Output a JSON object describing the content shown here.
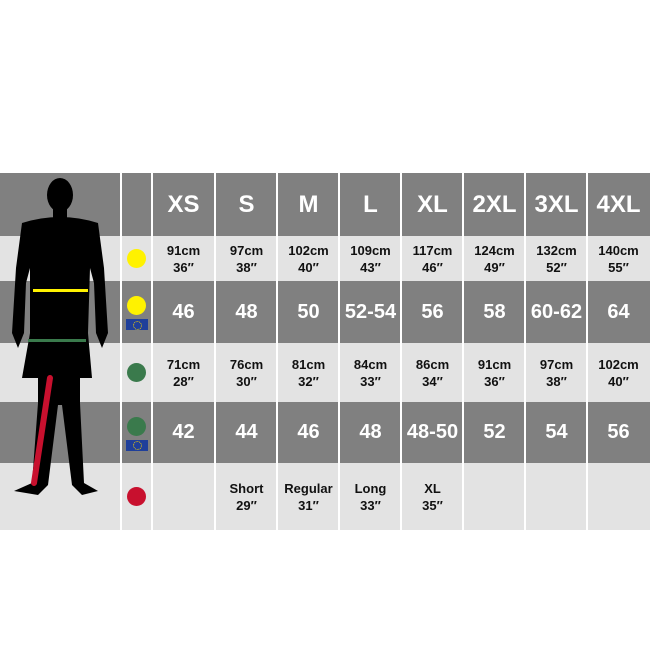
{
  "sizes": [
    "XS",
    "S",
    "M",
    "L",
    "XL",
    "2XL",
    "3XL",
    "4XL"
  ],
  "rows": [
    {
      "name": "chest-cm-in",
      "indicator": "yellow",
      "eu": false,
      "values": [
        [
          "91cm",
          "36″"
        ],
        [
          "97cm",
          "38″"
        ],
        [
          "102cm",
          "40″"
        ],
        [
          "109cm",
          "43″"
        ],
        [
          "117cm",
          "46″"
        ],
        [
          "124cm",
          "49″"
        ],
        [
          "132cm",
          "52″"
        ],
        [
          "140cm",
          "55″"
        ]
      ]
    },
    {
      "name": "chest-eu",
      "indicator": "yellow",
      "eu": true,
      "values": [
        [
          "46"
        ],
        [
          "48"
        ],
        [
          "50"
        ],
        [
          "52-54"
        ],
        [
          "56"
        ],
        [
          "58"
        ],
        [
          "60-62"
        ],
        [
          "64"
        ]
      ]
    },
    {
      "name": "waist-cm-in",
      "indicator": "green",
      "eu": false,
      "values": [
        [
          "71cm",
          "28″"
        ],
        [
          "76cm",
          "30″"
        ],
        [
          "81cm",
          "32″"
        ],
        [
          "84cm",
          "33″"
        ],
        [
          "86cm",
          "34″"
        ],
        [
          "91cm",
          "36″"
        ],
        [
          "97cm",
          "38″"
        ],
        [
          "102cm",
          "40″"
        ]
      ]
    },
    {
      "name": "waist-eu",
      "indicator": "green",
      "eu": true,
      "values": [
        [
          "42"
        ],
        [
          "44"
        ],
        [
          "46"
        ],
        [
          "48"
        ],
        [
          "48-50"
        ],
        [
          "52"
        ],
        [
          "54"
        ],
        [
          "56"
        ]
      ]
    },
    {
      "name": "inside-leg",
      "indicator": "red",
      "eu": false,
      "values": [
        [],
        [
          "Short",
          "29″"
        ],
        [
          "Regular",
          "31″"
        ],
        [
          "Long",
          "33″"
        ],
        [
          "XL",
          "35″"
        ],
        [],
        [],
        []
      ]
    }
  ],
  "colors": {
    "yellow": "#fff200",
    "green": "#3a7a4c",
    "red": "#c8102e",
    "dark": "#808080",
    "light": "#e3e3e3"
  }
}
